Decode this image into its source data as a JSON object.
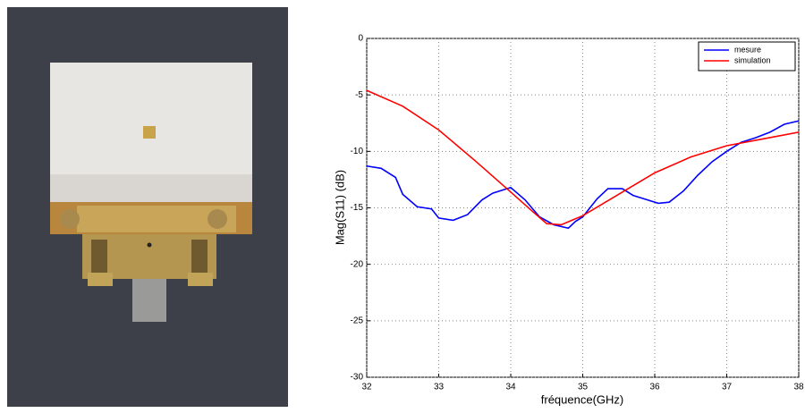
{
  "chart_data": {
    "type": "line",
    "xlabel": "fréquence(GHz)",
    "ylabel": "Mag(S11) (dB)",
    "xlim": [
      32,
      38
    ],
    "ylim": [
      -30,
      0
    ],
    "xticks": [
      32,
      33,
      34,
      35,
      36,
      37,
      38
    ],
    "yticks": [
      -30,
      -25,
      -20,
      -15,
      -10,
      -5,
      0
    ],
    "grid": true,
    "legend": "upper right",
    "series": [
      {
        "name": "mesure",
        "color": "#0000ff",
        "x": [
          32,
          32.2,
          32.4,
          32.5,
          32.7,
          32.9,
          33.0,
          33.2,
          33.4,
          33.6,
          33.75,
          34.0,
          34.2,
          34.4,
          34.6,
          34.8,
          34.9,
          35.0,
          35.2,
          35.35,
          35.55,
          35.7,
          35.9,
          36.05,
          36.2,
          36.4,
          36.6,
          36.8,
          37.0,
          37.2,
          37.4,
          37.6,
          37.8,
          38
        ],
        "values": [
          -11.3,
          -11.5,
          -12.3,
          -13.8,
          -14.9,
          -15.1,
          -15.9,
          -16.1,
          -15.6,
          -14.3,
          -13.7,
          -13.2,
          -14.3,
          -15.8,
          -16.5,
          -16.8,
          -16.2,
          -15.8,
          -14.2,
          -13.3,
          -13.3,
          -13.9,
          -14.3,
          -14.6,
          -14.5,
          -13.5,
          -12.1,
          -10.9,
          -10.0,
          -9.2,
          -8.8,
          -8.3,
          -7.6,
          -7.3
        ]
      },
      {
        "name": "simulation",
        "color": "#ff0000",
        "x": [
          32,
          32.5,
          33,
          33.5,
          34,
          34.3,
          34.5,
          34.7,
          35,
          35.5,
          36,
          36.5,
          37,
          37.5,
          38
        ],
        "values": [
          -4.6,
          -6.0,
          -8.1,
          -10.8,
          -13.6,
          -15.3,
          -16.4,
          -16.5,
          -15.7,
          -13.8,
          -11.9,
          -10.5,
          -9.5,
          -8.9,
          -8.3
        ]
      }
    ]
  }
}
